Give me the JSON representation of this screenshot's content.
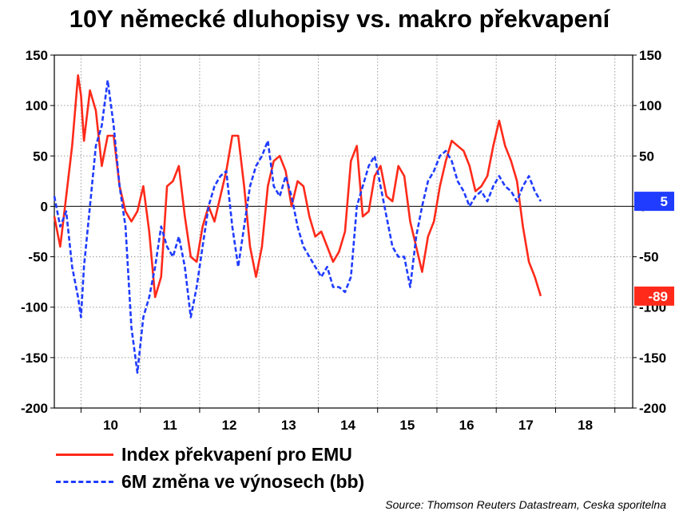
{
  "chart_data": {
    "type": "line",
    "title": "10Y německé dluhopisy vs. makro překvapení",
    "x_tick_labels": [
      "10",
      "11",
      "12",
      "13",
      "14",
      "15",
      "16",
      "17",
      "18"
    ],
    "x_tick_values": [
      2010.5,
      2011.5,
      2012.5,
      2013.5,
      2014.5,
      2015.5,
      2016.5,
      2017.5,
      2018.5
    ],
    "xlim": [
      2009.55,
      2019.3
    ],
    "y_ticks": [
      150,
      100,
      50,
      0,
      -50,
      -100,
      -150,
      -200
    ],
    "ylim": [
      -200,
      150
    ],
    "grid": true,
    "series": [
      {
        "name": "Index překvapení pro EMU",
        "color": "#ff2a1a",
        "style": "solid",
        "last_value": -89,
        "x": [
          2009.55,
          2009.65,
          2009.75,
          2009.85,
          2009.95,
          2010.0,
          2010.05,
          2010.15,
          2010.25,
          2010.35,
          2010.45,
          2010.55,
          2010.65,
          2010.75,
          2010.85,
          2010.95,
          2011.05,
          2011.15,
          2011.25,
          2011.35,
          2011.45,
          2011.55,
          2011.65,
          2011.75,
          2011.85,
          2011.95,
          2012.05,
          2012.15,
          2012.25,
          2012.35,
          2012.45,
          2012.55,
          2012.65,
          2012.75,
          2012.85,
          2012.95,
          2013.05,
          2013.15,
          2013.25,
          2013.35,
          2013.45,
          2013.55,
          2013.65,
          2013.75,
          2013.85,
          2013.95,
          2014.05,
          2014.15,
          2014.25,
          2014.35,
          2014.45,
          2014.55,
          2014.65,
          2014.75,
          2014.85,
          2014.95,
          2015.05,
          2015.15,
          2015.25,
          2015.35,
          2015.45,
          2015.55,
          2015.65,
          2015.75,
          2015.85,
          2015.95,
          2016.05,
          2016.15,
          2016.25,
          2016.35,
          2016.45,
          2016.55,
          2016.65,
          2016.75,
          2016.85,
          2016.95,
          2017.05,
          2017.15,
          2017.25,
          2017.35,
          2017.45,
          2017.55,
          2017.65,
          2017.75
        ],
        "values": [
          -10,
          -40,
          10,
          60,
          130,
          110,
          65,
          115,
          95,
          40,
          70,
          70,
          20,
          -5,
          -15,
          -5,
          20,
          -25,
          -90,
          -70,
          20,
          25,
          40,
          -10,
          -50,
          -55,
          -20,
          0,
          -15,
          10,
          35,
          70,
          70,
          20,
          -40,
          -70,
          -40,
          20,
          45,
          50,
          35,
          0,
          25,
          20,
          -10,
          -30,
          -25,
          -40,
          -55,
          -45,
          -25,
          45,
          60,
          -10,
          -5,
          30,
          40,
          10,
          5,
          40,
          30,
          -15,
          -40,
          -65,
          -30,
          -15,
          20,
          45,
          65,
          60,
          55,
          40,
          15,
          20,
          30,
          60,
          85,
          60,
          45,
          25,
          -20,
          -55,
          -70,
          -89
        ]
      },
      {
        "name": "6M změna ve výnosech (bb)",
        "color": "#1f3cff",
        "style": "dashed",
        "last_value": 5,
        "x": [
          2009.55,
          2009.65,
          2009.75,
          2009.85,
          2009.95,
          2010.0,
          2010.05,
          2010.15,
          2010.25,
          2010.35,
          2010.45,
          2010.55,
          2010.65,
          2010.75,
          2010.85,
          2010.95,
          2011.05,
          2011.15,
          2011.25,
          2011.35,
          2011.45,
          2011.55,
          2011.65,
          2011.75,
          2011.85,
          2011.95,
          2012.05,
          2012.15,
          2012.25,
          2012.35,
          2012.45,
          2012.55,
          2012.65,
          2012.75,
          2012.85,
          2012.95,
          2013.05,
          2013.15,
          2013.25,
          2013.35,
          2013.45,
          2013.55,
          2013.65,
          2013.75,
          2013.85,
          2013.95,
          2014.05,
          2014.15,
          2014.25,
          2014.35,
          2014.45,
          2014.55,
          2014.65,
          2014.75,
          2014.85,
          2014.95,
          2015.05,
          2015.15,
          2015.25,
          2015.35,
          2015.45,
          2015.55,
          2015.65,
          2015.75,
          2015.85,
          2015.95,
          2016.05,
          2016.15,
          2016.25,
          2016.35,
          2016.45,
          2016.55,
          2016.65,
          2016.75,
          2016.85,
          2016.95,
          2017.05,
          2017.15,
          2017.25,
          2017.35,
          2017.45,
          2017.55,
          2017.65,
          2017.75
        ],
        "values": [
          10,
          -20,
          -5,
          -60,
          -90,
          -110,
          -60,
          0,
          60,
          80,
          125,
          80,
          20,
          -20,
          -120,
          -165,
          -110,
          -90,
          -60,
          -20,
          -40,
          -50,
          -30,
          -60,
          -110,
          -80,
          -40,
          0,
          20,
          30,
          35,
          -20,
          -60,
          -20,
          20,
          40,
          50,
          65,
          20,
          10,
          30,
          10,
          -20,
          -40,
          -50,
          -60,
          -70,
          -60,
          -80,
          -80,
          -85,
          -70,
          0,
          20,
          40,
          50,
          20,
          -10,
          -40,
          -50,
          -50,
          -80,
          -30,
          0,
          25,
          35,
          50,
          55,
          45,
          25,
          15,
          0,
          10,
          15,
          5,
          20,
          30,
          20,
          15,
          5,
          20,
          30,
          15,
          5
        ]
      }
    ],
    "legend": {
      "position": "bottom-left",
      "entries": [
        "Index překvapení pro EMU",
        "6M změna ve výnosech (bb)"
      ]
    },
    "value_badges": {
      "blue": "5",
      "red": "-89"
    },
    "source": "Source: Thomson Reuters Datastream, Ceska sporitelna"
  }
}
